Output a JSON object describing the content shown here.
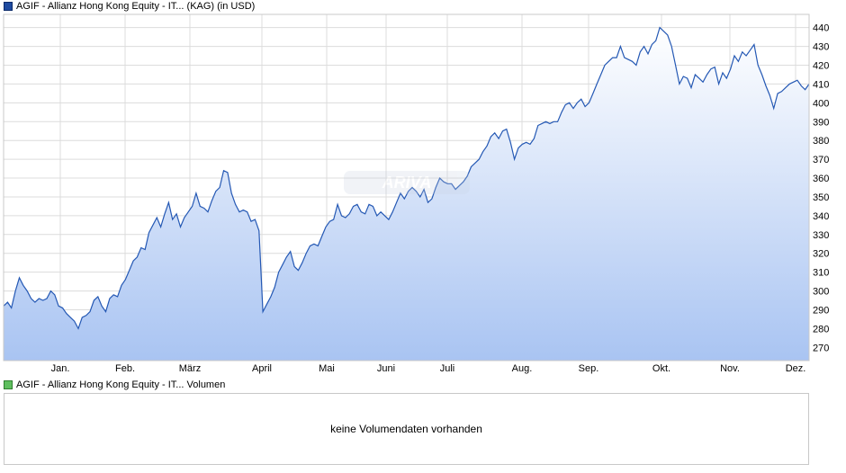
{
  "legend_price": "AGIF - Allianz Hong Kong Equity - IT... (KAG) (in USD)",
  "legend_volume": "AGIF - Allianz Hong Kong Equity - IT... Volumen",
  "volume_message": "keine Volumendaten vorhanden",
  "colors": {
    "line": "#2458b4",
    "fill_top": "#ffffff",
    "fill_bottom": "#a9c4f2",
    "grid": "#dcdcdc"
  },
  "chart_data": {
    "type": "area",
    "ylim": [
      263,
      447
    ],
    "y_ticks": [
      270,
      280,
      290,
      300,
      310,
      320,
      330,
      340,
      350,
      360,
      370,
      380,
      390,
      400,
      410,
      420,
      430,
      440
    ],
    "x_ticks": [
      "Jan.",
      "Feb.",
      "März",
      "April",
      "Mai",
      "Juni",
      "Juli",
      "Aug.",
      "Sep.",
      "Okt.",
      "Nov.",
      "Dez."
    ],
    "grid": true,
    "legend": "top-left",
    "watermark": "ARIVA",
    "series": [
      {
        "values": [
          292,
          294,
          291,
          300,
          307,
          303,
          300,
          296,
          294,
          296,
          295,
          296,
          300,
          298,
          292,
          291,
          288,
          286,
          284,
          280,
          286,
          287,
          289,
          295,
          297,
          292,
          289,
          296,
          298,
          297,
          303,
          306,
          311,
          316,
          318,
          323,
          322,
          331,
          335,
          339,
          334,
          341,
          347,
          338,
          341,
          334,
          339,
          342,
          345,
          352,
          345,
          344,
          342,
          348,
          353,
          355,
          364,
          363,
          352,
          346,
          342,
          343,
          342,
          337,
          338,
          332,
          289,
          293,
          297,
          302,
          310,
          314,
          318,
          321,
          313,
          311,
          315,
          320,
          324,
          325,
          324,
          329,
          334,
          337,
          338,
          346,
          340,
          339,
          341,
          345,
          346,
          342,
          341,
          346,
          345,
          340,
          342,
          340,
          338,
          342,
          347,
          352,
          349,
          353,
          355,
          353,
          350,
          354,
          347,
          349,
          355,
          360,
          358,
          357,
          357,
          354,
          356,
          358,
          361,
          366,
          368,
          370,
          374,
          377,
          382,
          384,
          381,
          385,
          386,
          379,
          370,
          376,
          378,
          379,
          378,
          381,
          388,
          389,
          390,
          389,
          390,
          390,
          395,
          399,
          400,
          397,
          400,
          402,
          398,
          400,
          405,
          410,
          415,
          420,
          422,
          424,
          424,
          430,
          424,
          423,
          422,
          420,
          427,
          430,
          426,
          431,
          433,
          440,
          438,
          436,
          430,
          420,
          410,
          414,
          413,
          408,
          415,
          413,
          411,
          415,
          418,
          419,
          410,
          416,
          413,
          418,
          425,
          422,
          427,
          425,
          428,
          431,
          420,
          415,
          409,
          404,
          397,
          405,
          406,
          408,
          410,
          411,
          412,
          409,
          407,
          410
        ]
      }
    ]
  }
}
